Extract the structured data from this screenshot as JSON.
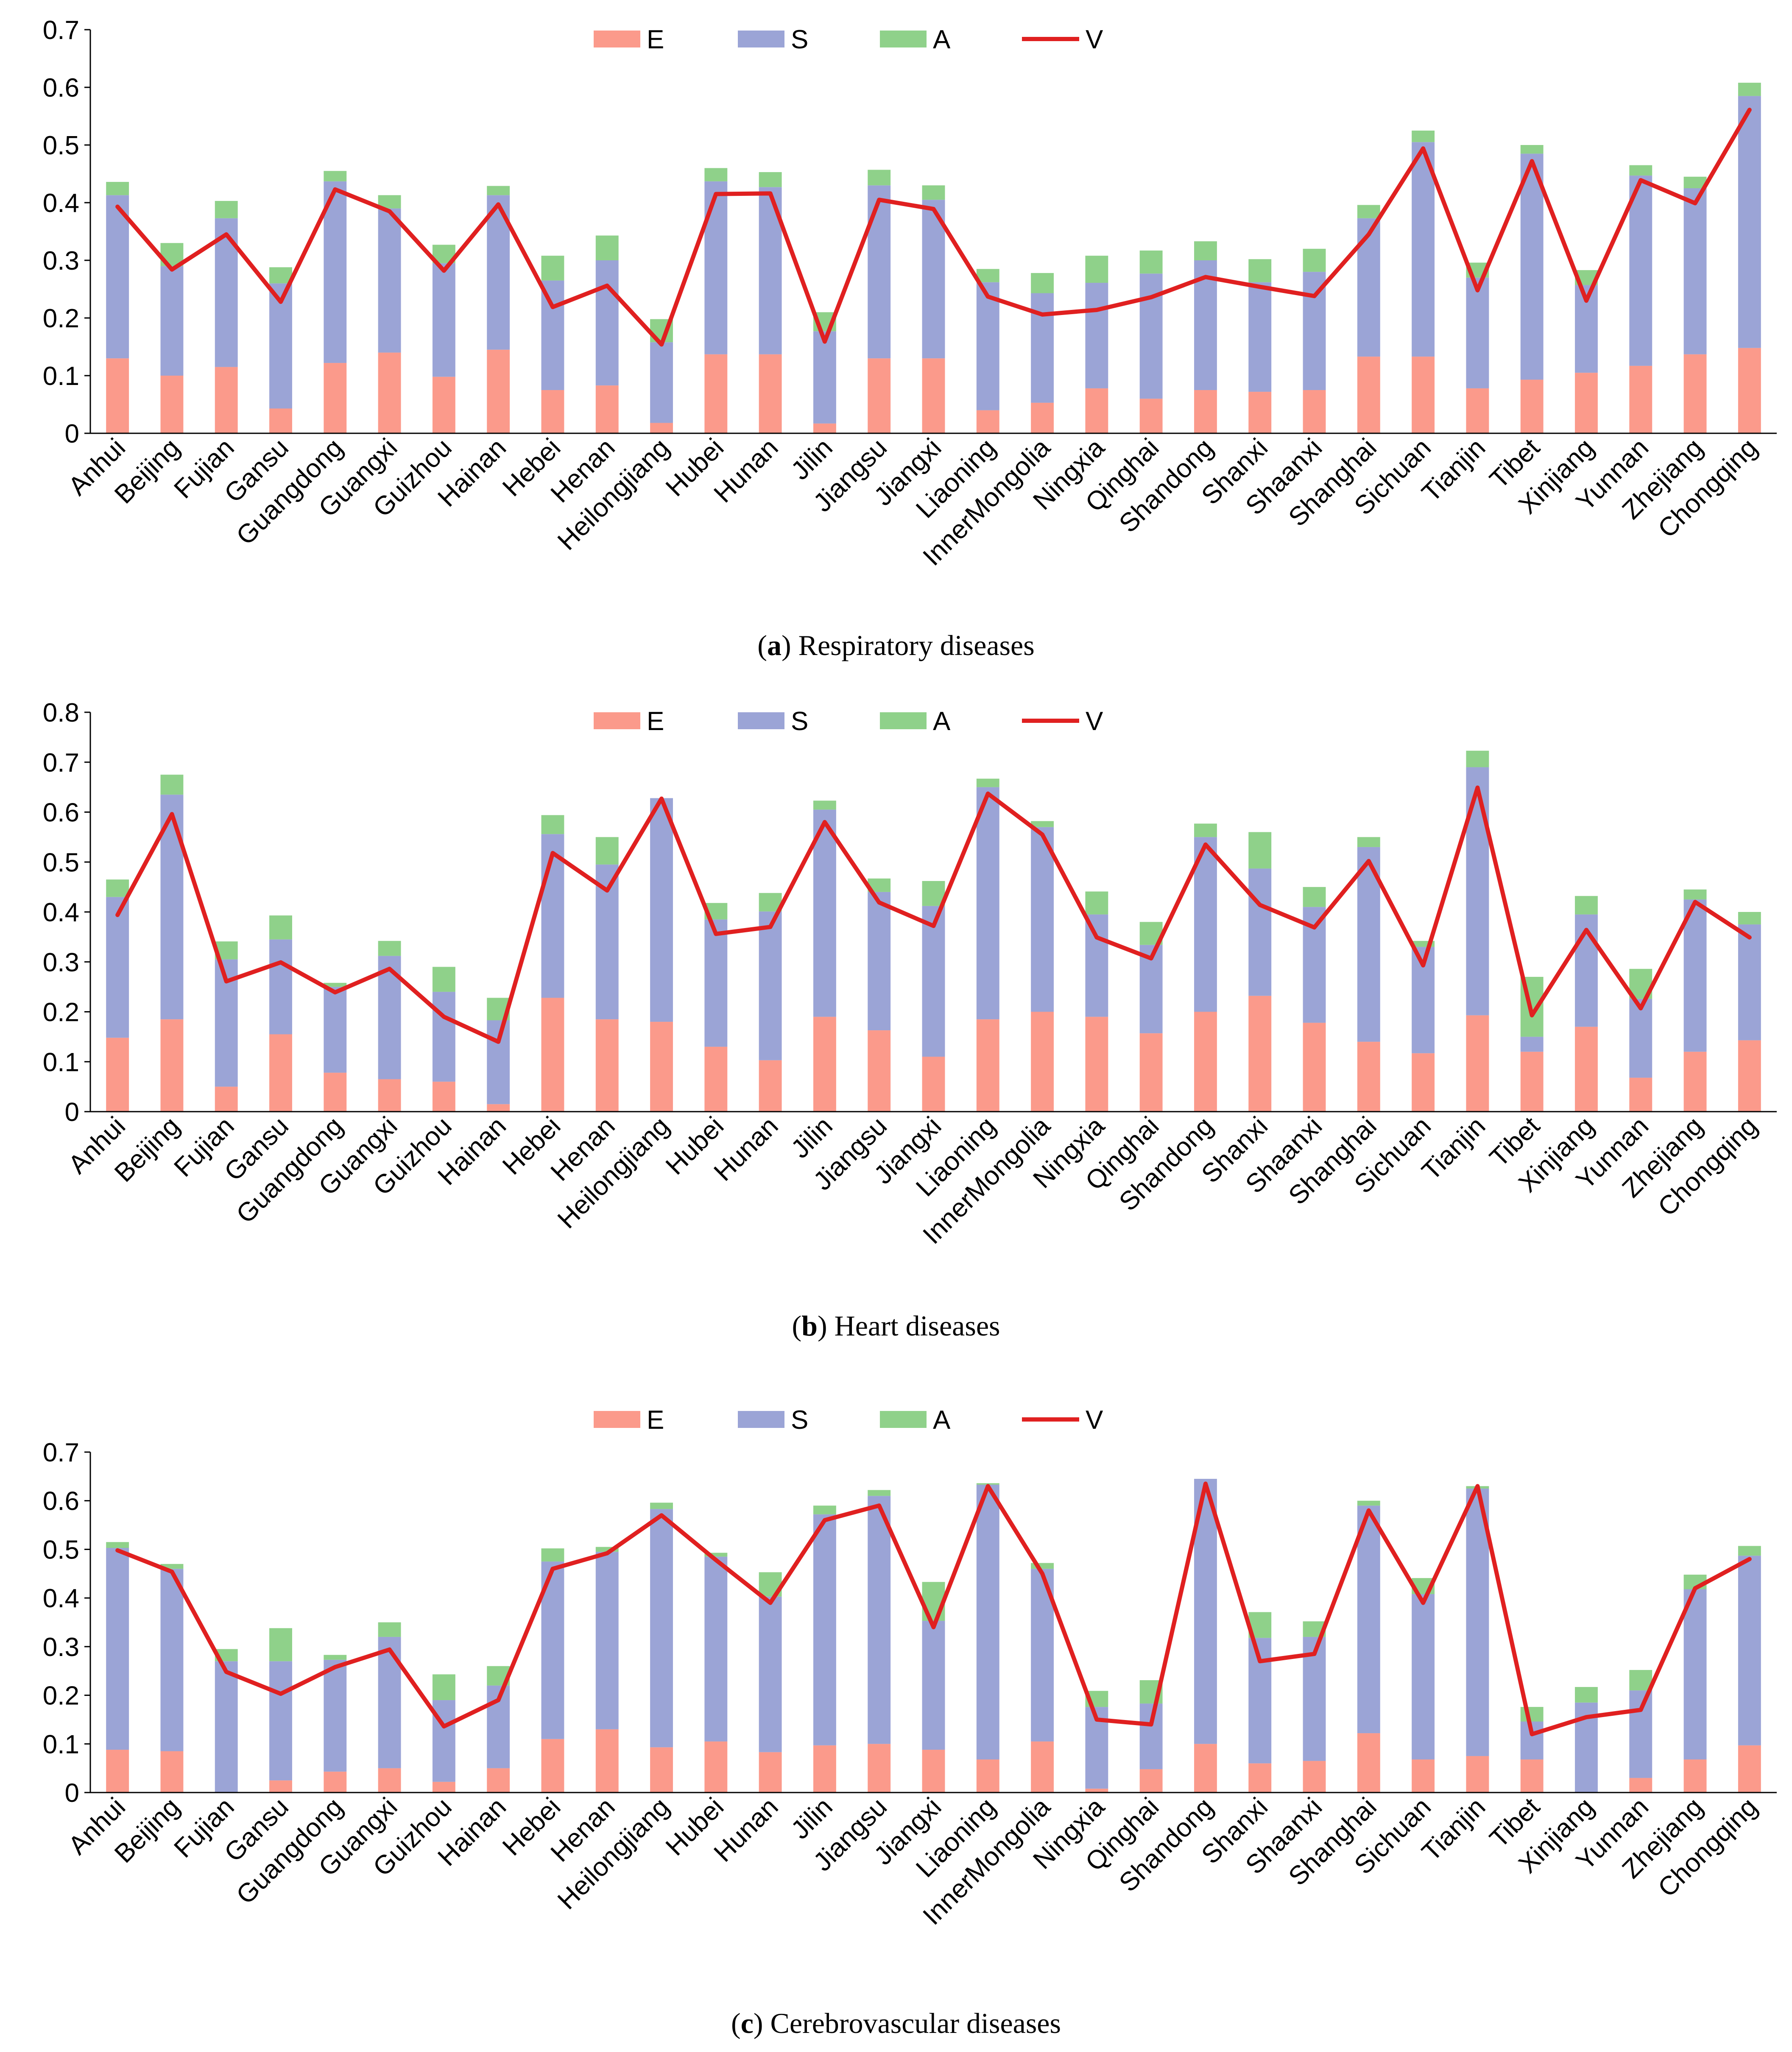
{
  "colors": {
    "E": "#fb9a8b",
    "S": "#9ba4d6",
    "A": "#8fd18a",
    "V": "#e02020",
    "axis": "#000000",
    "text": "#000000"
  },
  "legend": [
    {
      "key": "E",
      "label": "E",
      "kind": "bar"
    },
    {
      "key": "S",
      "label": "S",
      "kind": "bar"
    },
    {
      "key": "A",
      "label": "A",
      "kind": "bar"
    },
    {
      "key": "V",
      "label": "V",
      "kind": "line"
    }
  ],
  "chart_data": [
    {
      "type": "bar",
      "stacked": true,
      "caption_letter": "a",
      "caption_text": " Respiratory diseases",
      "legend_position": "top-center",
      "ylim": [
        0,
        0.7
      ],
      "yticks": [
        "0",
        "0.1",
        "0.2",
        "0.3",
        "0.4",
        "0.5",
        "0.6",
        "0.7"
      ],
      "categories": [
        "Anhui",
        "Beijing",
        "Fujian",
        "Gansu",
        "Guangdong",
        "Guangxi",
        "Guizhou",
        "Hainan",
        "Hebei",
        "Henan",
        "Heilongjiang",
        "Hubei",
        "Hunan",
        "Jilin",
        "Jiangsu",
        "Jiangxi",
        "Liaoning",
        "InnerMongolia",
        "Ningxia",
        "Qinghai",
        "Shandong",
        "Shanxi",
        "Shaanxi",
        "Shanghai",
        "Sichuan",
        "Tianjin",
        "Tibet",
        "Xinjiang",
        "Yunnan",
        "Zhejiang",
        "Chongqing"
      ],
      "series": [
        {
          "name": "E",
          "values": [
            0.13,
            0.1,
            0.115,
            0.043,
            0.122,
            0.14,
            0.098,
            0.145,
            0.075,
            0.083,
            0.018,
            0.137,
            0.137,
            0.017,
            0.13,
            0.13,
            0.04,
            0.053,
            0.078,
            0.06,
            0.075,
            0.072,
            0.075,
            0.133,
            0.133,
            0.078,
            0.093,
            0.105,
            0.117,
            0.137,
            0.148
          ]
        },
        {
          "name": "S",
          "values": [
            0.283,
            0.19,
            0.258,
            0.217,
            0.315,
            0.25,
            0.197,
            0.268,
            0.19,
            0.217,
            0.14,
            0.3,
            0.29,
            0.16,
            0.3,
            0.275,
            0.222,
            0.19,
            0.183,
            0.217,
            0.225,
            0.19,
            0.205,
            0.24,
            0.372,
            0.192,
            0.392,
            0.152,
            0.33,
            0.288,
            0.437
          ]
        },
        {
          "name": "A",
          "values": [
            0.023,
            0.04,
            0.03,
            0.028,
            0.018,
            0.023,
            0.032,
            0.016,
            0.043,
            0.043,
            0.04,
            0.023,
            0.026,
            0.033,
            0.027,
            0.025,
            0.023,
            0.035,
            0.047,
            0.04,
            0.033,
            0.04,
            0.04,
            0.023,
            0.02,
            0.026,
            0.015,
            0.026,
            0.018,
            0.02,
            0.023
          ]
        },
        {
          "name": "V",
          "type": "line",
          "values": [
            0.393,
            0.284,
            0.345,
            0.228,
            0.423,
            0.385,
            0.282,
            0.397,
            0.219,
            0.256,
            0.154,
            0.415,
            0.416,
            0.159,
            0.405,
            0.389,
            0.237,
            0.206,
            0.214,
            0.236,
            0.271,
            0.254,
            0.238,
            0.345,
            0.494,
            0.248,
            0.472,
            0.23,
            0.439,
            0.399,
            0.561
          ]
        }
      ]
    },
    {
      "type": "bar",
      "stacked": true,
      "caption_letter": "b",
      "caption_text": " Heart diseases",
      "legend_position": "top-center",
      "ylim": [
        0,
        0.8
      ],
      "yticks": [
        "0",
        "0.1",
        "0.2",
        "0.3",
        "0.4",
        "0.5",
        "0.6",
        "0.7",
        "0.8"
      ],
      "categories": [
        "Anhui",
        "Beijing",
        "Fujian",
        "Gansu",
        "Guangdong",
        "Guangxi",
        "Guizhou",
        "Hainan",
        "Hebei",
        "Henan",
        "Heilongjiang",
        "Hubei",
        "Hunan",
        "Jilin",
        "Jiangsu",
        "Jiangxi",
        "Liaoning",
        "InnerMongolia",
        "Ningxia",
        "Qinghai",
        "Shandong",
        "Shanxi",
        "Shaanxi",
        "Shanghai",
        "Sichuan",
        "Tianjin",
        "Tibet",
        "Xinjiang",
        "Yunnan",
        "Zhejiang",
        "Chongqing"
      ],
      "series": [
        {
          "name": "E",
          "values": [
            0.148,
            0.185,
            0.05,
            0.155,
            0.078,
            0.065,
            0.06,
            0.015,
            0.228,
            0.185,
            0.18,
            0.13,
            0.103,
            0.19,
            0.163,
            0.11,
            0.185,
            0.2,
            0.19,
            0.157,
            0.2,
            0.232,
            0.178,
            0.14,
            0.117,
            0.193,
            0.12,
            0.17,
            0.068,
            0.12,
            0.143
          ]
        },
        {
          "name": "S",
          "values": [
            0.282,
            0.45,
            0.255,
            0.19,
            0.172,
            0.247,
            0.18,
            0.168,
            0.328,
            0.31,
            0.448,
            0.255,
            0.298,
            0.415,
            0.277,
            0.302,
            0.465,
            0.37,
            0.205,
            0.177,
            0.35,
            0.255,
            0.232,
            0.39,
            0.213,
            0.497,
            0.03,
            0.225,
            0.158,
            0.305,
            0.232
          ]
        },
        {
          "name": "A",
          "values": [
            0.035,
            0.04,
            0.036,
            0.048,
            0.008,
            0.03,
            0.05,
            0.045,
            0.038,
            0.055,
            0.0,
            0.033,
            0.037,
            0.018,
            0.027,
            0.05,
            0.017,
            0.012,
            0.046,
            0.046,
            0.027,
            0.073,
            0.04,
            0.02,
            0.012,
            0.033,
            0.12,
            0.037,
            0.06,
            0.02,
            0.025
          ]
        },
        {
          "name": "V",
          "type": "line",
          "values": [
            0.394,
            0.596,
            0.261,
            0.299,
            0.239,
            0.286,
            0.19,
            0.14,
            0.518,
            0.443,
            0.627,
            0.356,
            0.37,
            0.58,
            0.419,
            0.372,
            0.637,
            0.555,
            0.349,
            0.307,
            0.535,
            0.414,
            0.369,
            0.502,
            0.293,
            0.649,
            0.193,
            0.364,
            0.207,
            0.42,
            0.349
          ]
        }
      ]
    },
    {
      "type": "bar",
      "stacked": true,
      "caption_letter": "c",
      "caption_text": " Cerebrovascular diseases",
      "legend_position": "top-center",
      "ylim": [
        0,
        0.7
      ],
      "yticks": [
        "0",
        "0.1",
        "0.2",
        "0.3",
        "0.4",
        "0.5",
        "0.6",
        "0.7"
      ],
      "categories": [
        "Anhui",
        "Beijing",
        "Fujian",
        "Gansu",
        "Guangdong",
        "Guangxi",
        "Guizhou",
        "Hainan",
        "Hebei",
        "Henan",
        "Heilongjiang",
        "Hubei",
        "Hunan",
        "Jilin",
        "Jiangsu",
        "Jiangxi",
        "Liaoning",
        "InnerMongolia",
        "Ningxia",
        "Qinghai",
        "Shandong",
        "Shanxi",
        "Shaanxi",
        "Shanghai",
        "Sichuan",
        "Tianjin",
        "Tibet",
        "Xinjiang",
        "Yunnan",
        "Zhejiang",
        "Chongqing"
      ],
      "series": [
        {
          "name": "E",
          "values": [
            0.088,
            0.085,
            0.0,
            0.025,
            0.043,
            0.05,
            0.022,
            0.05,
            0.11,
            0.13,
            0.093,
            0.105,
            0.083,
            0.097,
            0.1,
            0.088,
            0.068,
            0.105,
            0.008,
            0.048,
            0.1,
            0.06,
            0.065,
            0.122,
            0.068,
            0.075,
            0.068,
            0.0,
            0.03,
            0.068,
            0.097
          ]
        },
        {
          "name": "S",
          "values": [
            0.415,
            0.375,
            0.27,
            0.245,
            0.23,
            0.27,
            0.168,
            0.17,
            0.365,
            0.365,
            0.49,
            0.38,
            0.32,
            0.475,
            0.51,
            0.265,
            0.565,
            0.355,
            0.168,
            0.135,
            0.545,
            0.258,
            0.255,
            0.468,
            0.34,
            0.55,
            0.078,
            0.185,
            0.18,
            0.35,
            0.39
          ]
        },
        {
          "name": "A",
          "values": [
            0.012,
            0.01,
            0.025,
            0.068,
            0.01,
            0.03,
            0.053,
            0.04,
            0.027,
            0.01,
            0.013,
            0.008,
            0.05,
            0.018,
            0.012,
            0.08,
            0.003,
            0.012,
            0.033,
            0.048,
            0.0,
            0.053,
            0.032,
            0.01,
            0.033,
            0.005,
            0.03,
            0.032,
            0.042,
            0.03,
            0.02
          ]
        },
        {
          "name": "V",
          "type": "line",
          "values": [
            0.498,
            0.454,
            0.248,
            0.203,
            0.258,
            0.294,
            0.136,
            0.19,
            0.46,
            0.492,
            0.57,
            0.478,
            0.39,
            0.56,
            0.59,
            0.34,
            0.63,
            0.45,
            0.15,
            0.14,
            0.635,
            0.27,
            0.285,
            0.58,
            0.39,
            0.63,
            0.12,
            0.155,
            0.17,
            0.42,
            0.48
          ]
        }
      ]
    }
  ]
}
